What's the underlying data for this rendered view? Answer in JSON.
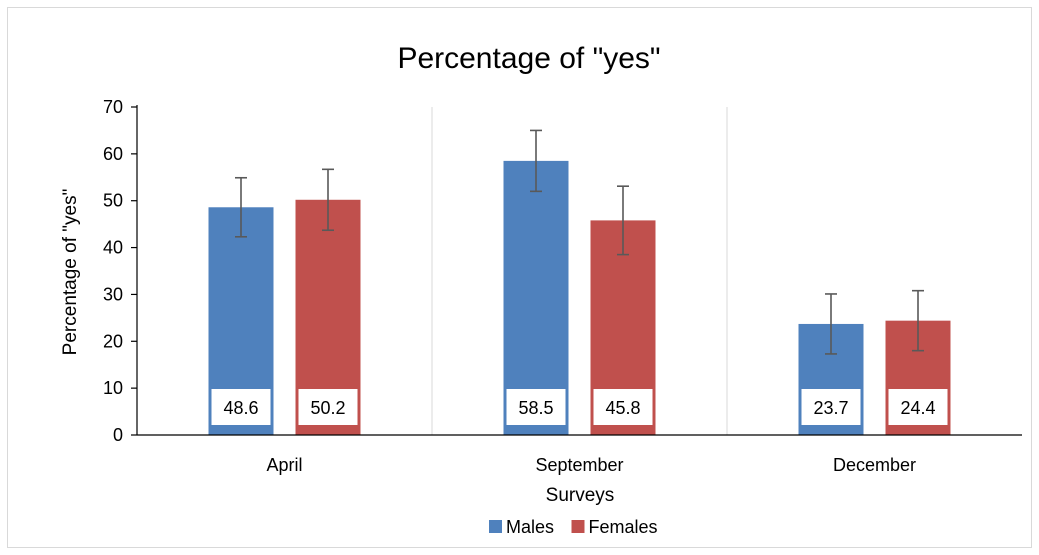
{
  "chart_data": {
    "type": "bar",
    "title": "Percentage of \"yes\"",
    "xlabel": "Surveys",
    "ylabel": "Percentage of \"yes\"",
    "ylim": [
      0,
      70
    ],
    "yticks": [
      0,
      10,
      20,
      30,
      40,
      50,
      60,
      70
    ],
    "categories": [
      "April",
      "September",
      "December"
    ],
    "series": [
      {
        "name": "Males",
        "color": "#4f81bd",
        "values": [
          48.6,
          58.5,
          23.7
        ],
        "labels": [
          "48.6",
          "58.5",
          "23.7"
        ],
        "error": [
          6.3,
          6.5,
          6.4
        ]
      },
      {
        "name": "Females",
        "color": "#c0504d",
        "values": [
          50.2,
          45.8,
          24.4
        ],
        "labels": [
          "50.2",
          "45.8",
          "24.4"
        ],
        "error": [
          6.5,
          7.3,
          6.4
        ]
      }
    ],
    "legend_position": "bottom",
    "grid": "vertical category separators"
  }
}
